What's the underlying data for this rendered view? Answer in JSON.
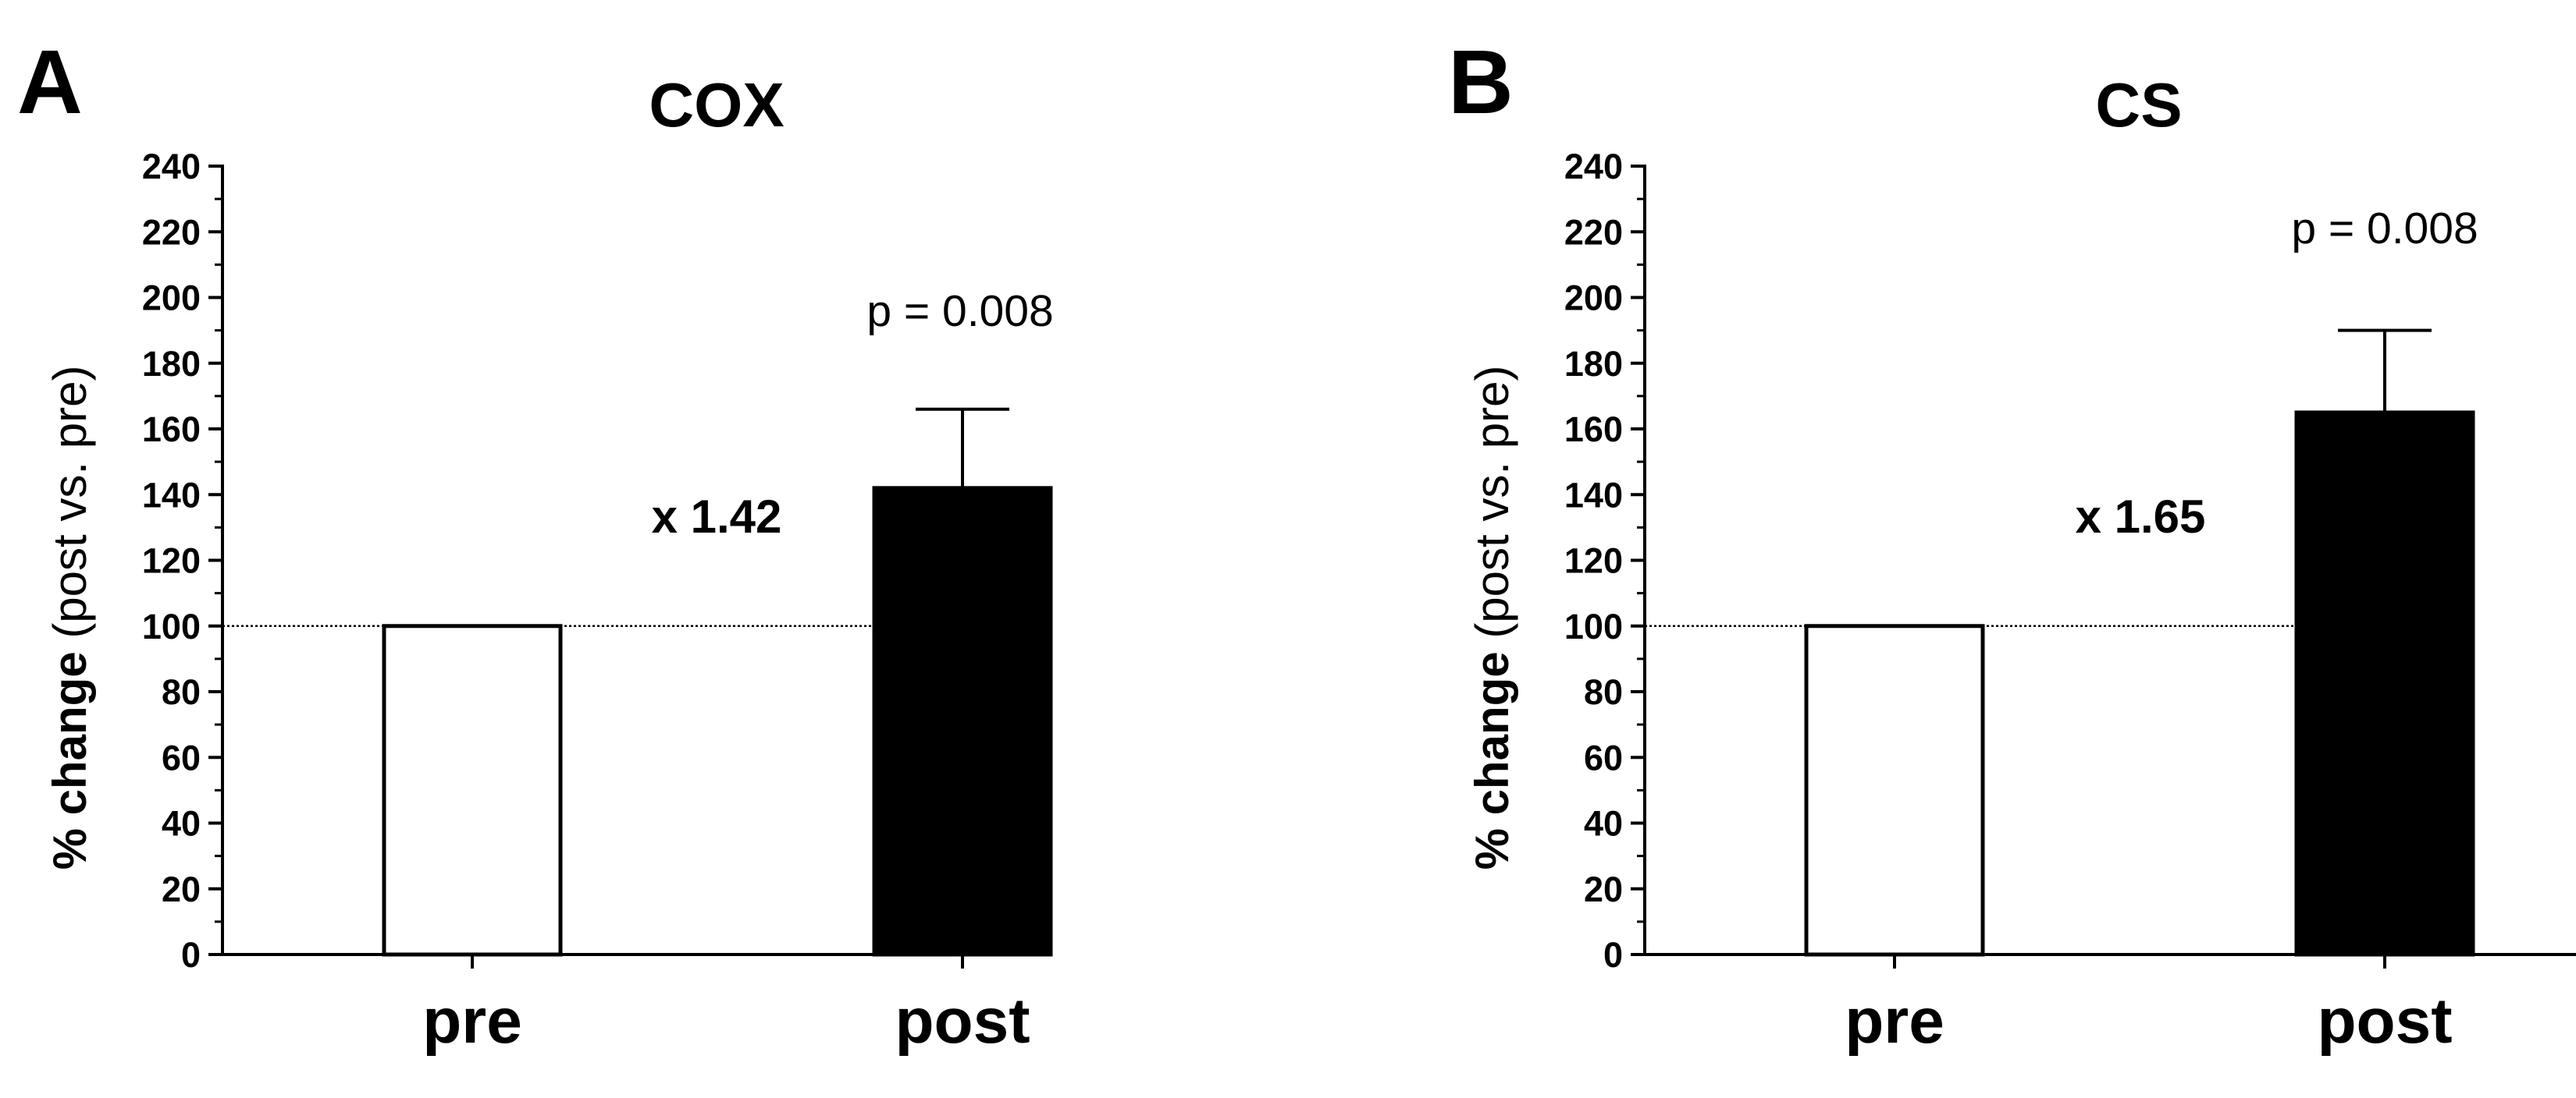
{
  "chart_data": [
    {
      "type": "bar",
      "panel": "A",
      "title": "COX",
      "categories": [
        "pre",
        "post"
      ],
      "values": [
        100,
        142
      ],
      "error_up": [
        0,
        24
      ],
      "bar_colors": [
        "#ffffff",
        "#000000"
      ],
      "ylabel_bold": "% change",
      "ylabel_rest": "(post vs. pre)",
      "ylim": [
        0,
        240
      ],
      "ytick_step": 20,
      "yticks": [
        "0",
        "20",
        "40",
        "60",
        "80",
        "100",
        "120",
        "140",
        "160",
        "180",
        "200",
        "220",
        "240"
      ],
      "reference_line": 100,
      "annotations": {
        "fold": "x 1.42",
        "pvalue": "p = 0.008"
      }
    },
    {
      "type": "bar",
      "panel": "B",
      "title": "CS",
      "categories": [
        "pre",
        "post"
      ],
      "values": [
        100,
        165
      ],
      "error_up": [
        0,
        25
      ],
      "bar_colors": [
        "#ffffff",
        "#000000"
      ],
      "ylabel_bold": "% change",
      "ylabel_rest": "(post vs. pre)",
      "ylim": [
        0,
        240
      ],
      "ytick_step": 20,
      "yticks": [
        "0",
        "20",
        "40",
        "60",
        "80",
        "100",
        "120",
        "140",
        "160",
        "180",
        "200",
        "220",
        "240"
      ],
      "reference_line": 100,
      "annotations": {
        "fold": "x 1.65",
        "pvalue": "p = 0.008"
      }
    }
  ]
}
